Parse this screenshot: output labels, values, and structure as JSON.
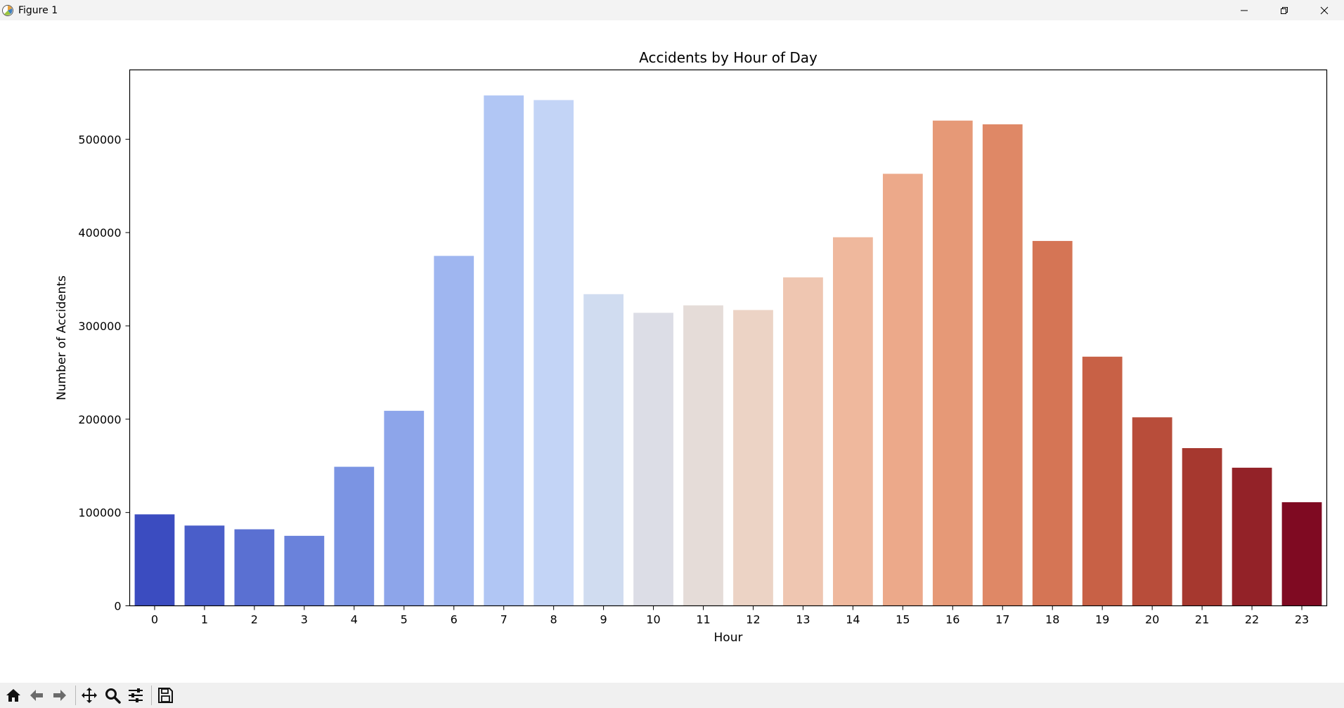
{
  "window": {
    "title": "Figure 1",
    "controls": [
      "minimize-icon",
      "restore-icon",
      "close-icon"
    ]
  },
  "toolbar": {
    "buttons": [
      "home-icon",
      "back-icon",
      "forward-icon",
      "pan-icon",
      "zoom-icon",
      "configure-subplots-icon",
      "save-icon"
    ]
  },
  "chart_data": {
    "type": "bar",
    "title": "Accidents by Hour of Day",
    "xlabel": "Hour",
    "ylabel": "Number of Accidents",
    "categories": [
      "0",
      "1",
      "2",
      "3",
      "4",
      "5",
      "6",
      "7",
      "8",
      "9",
      "10",
      "11",
      "12",
      "13",
      "14",
      "15",
      "16",
      "17",
      "18",
      "19",
      "20",
      "21",
      "22",
      "23"
    ],
    "values": [
      98000,
      86000,
      82000,
      75000,
      149000,
      209000,
      375000,
      547000,
      542000,
      334000,
      314000,
      322000,
      317000,
      352000,
      395000,
      463000,
      520000,
      516000,
      391000,
      267000,
      202000,
      169000,
      148000,
      111000
    ],
    "colors": [
      "#3b4cc0",
      "#4a5ec9",
      "#5a70d2",
      "#6a82db",
      "#7b94e3",
      "#8da5ea",
      "#9fb6f0",
      "#b1c6f4",
      "#c3d4f6",
      "#d0dcf0",
      "#dcdde6",
      "#e5dcd8",
      "#ecd3c5",
      "#efc6b1",
      "#efb89d",
      "#eca98a",
      "#e69977",
      "#df8866",
      "#d57555",
      "#c86146",
      "#b84d3a",
      "#a6382f",
      "#932228",
      "#7f0a22"
    ],
    "yticks": [
      0,
      100000,
      200000,
      300000,
      400000,
      500000
    ],
    "ylim": [
      0,
      574350
    ],
    "grid": false,
    "legend": "none"
  }
}
